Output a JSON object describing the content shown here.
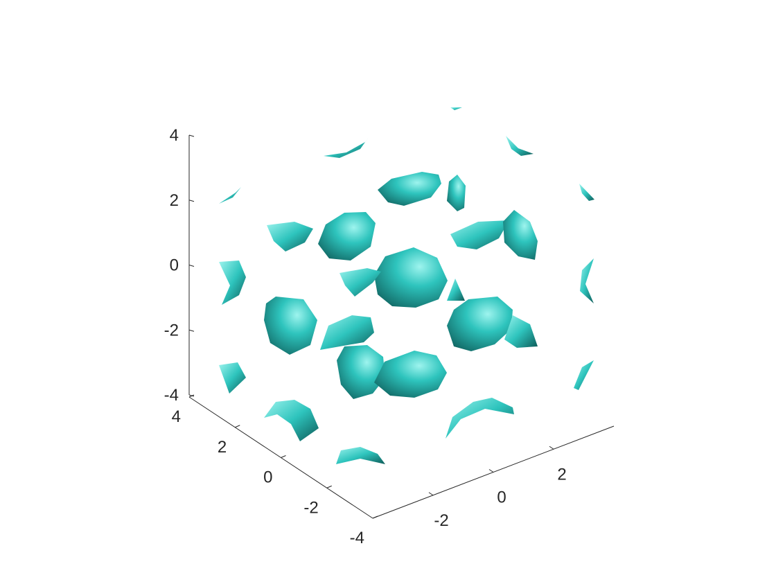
{
  "chart_data": {
    "type": "isosurface",
    "title": "",
    "xlabel": "",
    "ylabel": "",
    "zlabel": "",
    "xlim": [
      -4,
      4
    ],
    "ylim": [
      -4,
      4
    ],
    "zlim": [
      -4,
      4
    ],
    "x_ticks": [
      "-2",
      "0",
      "2"
    ],
    "y_ticks": [
      "-4",
      "-2",
      "0",
      "2",
      "4"
    ],
    "z_ticks": [
      "-4",
      "-2",
      "0",
      "2",
      "4"
    ],
    "grid": false,
    "surface_color": "#2ec4bd",
    "surface_dark": "#0d5a57",
    "surface_highlight": "#9ef4ee"
  }
}
